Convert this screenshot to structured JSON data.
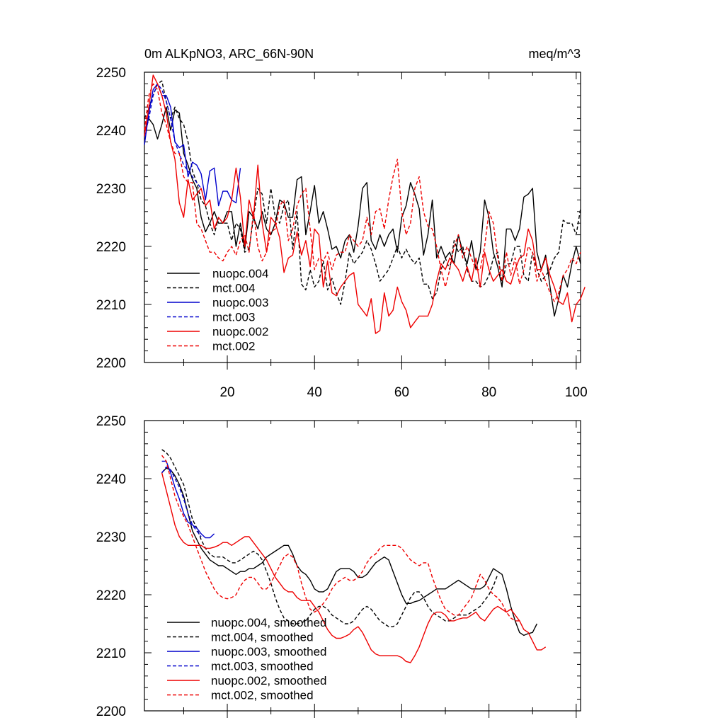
{
  "chart_data": [
    {
      "type": "line",
      "title_left": "0m ALKpNO3, ARC_66N-90N",
      "title_right": "meq/m^3",
      "xlim": [
        1,
        101
      ],
      "ylim": [
        2200,
        2250
      ],
      "xticks": [
        20,
        40,
        60,
        80,
        100
      ],
      "yticks": [
        2200,
        2210,
        2220,
        2230,
        2240,
        2250
      ],
      "show_x_tick_labels": true,
      "legend_position": "bottom-left",
      "series": [
        {
          "name": "nuopc.004",
          "color": "#000000",
          "dash": "solid",
          "start": 1,
          "values": [
            2240,
            2242,
            2241,
            2238.5,
            2241,
            2244,
            2240,
            2243.5,
            2243,
            2236,
            2234,
            2231.5,
            2230,
            2225,
            2222.5,
            2224,
            2226,
            2224,
            2224,
            2226,
            2226,
            2220,
            2224,
            2219.5,
            2226,
            2225,
            2223,
            2226,
            2223,
            2222,
            2224,
            2228,
            2227.5,
            2225,
            2225,
            2231.5,
            2232,
            2222,
            2226,
            2230.5,
            2224,
            2226,
            2223,
            2219.5,
            2220,
            2218,
            2221,
            2222,
            2219,
            2223.5,
            2230,
            2231,
            2221,
            2219.5,
            2222,
            2220,
            2222,
            2223,
            2219,
            2225,
            2227,
            2231,
            2229,
            2226.5,
            2218.5,
            2222,
            2228,
            2218,
            2220,
            2218,
            2219,
            2217,
            2222,
            2219,
            2217,
            2221,
            2216,
            2219,
            2228,
            2225,
            2219,
            2216.5,
            2213,
            2223,
            2223,
            2221,
            2223,
            2228.5,
            2229,
            2230,
            2219,
            2216,
            2218.5,
            2213,
            2208,
            2211,
            2215,
            2213,
            2217,
            2220,
            2217
          ]
        },
        {
          "name": "mct.004",
          "color": "#000000",
          "dash": "dashed",
          "start": 1,
          "values": [
            2242,
            2244,
            2246,
            2248,
            2248.5,
            2245,
            2242,
            2244,
            2242,
            2241,
            2238,
            2233,
            2231,
            2228,
            2227,
            2224,
            2222,
            2225,
            2224,
            2224,
            2221,
            2224,
            2223,
            2219,
            2219.5,
            2225,
            2230,
            2229,
            2224,
            2230,
            2225,
            2224,
            2227,
            2228,
            2219.5,
            2226,
            2213.5,
            2212.5,
            2216,
            2213,
            2214,
            2217.5,
            2212.5,
            2214.5,
            2212,
            2210,
            2214,
            2219,
            2217,
            2218,
            2219,
            2221,
            2219.5,
            2217,
            2214,
            2215,
            2216,
            2218,
            2220,
            2218,
            2219.5,
            2218,
            2217,
            2218,
            2213.5,
            2213.5,
            2211,
            2212,
            2216,
            2218,
            2216,
            2221,
            2219,
            2220,
            2216,
            2214,
            2214,
            2213,
            2213.5,
            2215,
            2218,
            2219,
            2213.5,
            2217,
            2217,
            2220,
            2220,
            2215,
            2214,
            2219,
            2216,
            2214,
            2215,
            2216,
            2218,
            2219,
            2224.5,
            2224,
            2224,
            2222,
            2226.5
          ]
        },
        {
          "name": "nuopc.003",
          "color": "#0000cc",
          "dash": "solid",
          "start": 1,
          "values": [
            2237.5,
            2243,
            2247,
            2248,
            2246,
            2246,
            2244,
            2238,
            2237,
            2237.5,
            2232,
            2234.5,
            2234,
            2232.5,
            2228,
            2233,
            2233.5,
            2227,
            2229.5,
            2229.5,
            2228,
            2227.5,
            2233.5
          ]
        },
        {
          "name": "mct.003",
          "color": "#0000cc",
          "dash": "dashed",
          "start": 1,
          "values": [
            2239,
            2242,
            2246,
            2248,
            2247,
            2245,
            2242,
            2238,
            2236,
            2234,
            2233,
            2232,
            2231,
            2230
          ]
        },
        {
          "name": "nuopc.002",
          "color": "#ee0000",
          "dash": "solid",
          "start": 1,
          "values": [
            2239,
            2244,
            2249.5,
            2248,
            2246,
            2243,
            2238,
            2235,
            2227.5,
            2225,
            2231.5,
            2228,
            2229,
            2230,
            2227,
            2228,
            2223,
            2225,
            2224,
            2225,
            2228,
            2233.5,
            2228.5,
            2220,
            2228,
            2225,
            2234,
            2224,
            2219,
            2225,
            2224,
            2221.5,
            2215.5,
            2218,
            2218.5,
            2222.5,
            2218.5,
            2221,
            2216.5,
            2223,
            2222,
            2213,
            2217.5,
            2212,
            2211.5,
            2213,
            2214,
            2215,
            2215.5,
            2210,
            2209,
            2208,
            2211,
            2205,
            2205.5,
            2212,
            2208,
            2209,
            2213,
            2210.5,
            2209,
            2206,
            2207,
            2208,
            2208,
            2208,
            2210,
            2214,
            2217,
            2216,
            2218,
            2217,
            2216,
            2214,
            2216.5,
            2214,
            2218,
            2213,
            2219,
            2216,
            2214,
            2215,
            2216,
            2214,
            2213.5,
            2216,
            2218,
            2218.5,
            2223,
            2221,
            2216,
            2216,
            2218,
            2215,
            2213,
            2210.5,
            2210,
            2212,
            2207,
            2210,
            2211,
            2213
          ]
        },
        {
          "name": "mct.002",
          "color": "#ee0000",
          "dash": "dashed",
          "start": 1,
          "values": [
            2240,
            2246,
            2248,
            2247,
            2243,
            2241,
            2238,
            2236,
            2236,
            2232,
            2231,
            2231,
            2224,
            2223,
            2221,
            2219,
            2219,
            2218,
            2217.5,
            2219,
            2220,
            2218.5,
            2221,
            2222,
            2219,
            2226,
            2220,
            2217.5,
            2219,
            2222.5,
            2223,
            2227,
            2228,
            2221,
            2223,
            2227,
            2229,
            2230,
            2223,
            2216,
            2218,
            2217.5,
            2219,
            2216,
            2218.5,
            2219,
            2219,
            2222,
            2221,
            2220,
            2221,
            2225,
            2222,
            2226,
            2226.5,
            2223,
            2228,
            2232,
            2235,
            2226,
            2222,
            2224,
            2230,
            2232,
            2226,
            2223.5,
            2223,
            2220,
            2216,
            2213,
            2216,
            2220,
            2222,
            2218,
            2220,
            2218,
            2216,
            2216,
            2220,
            2226,
            2224,
            2218,
            2214,
            2219,
            2215,
            2218,
            2213.5,
            2216,
            2220,
            2219,
            2214,
            2216,
            2214,
            2212,
            2210.5,
            2212,
            2215,
            2216,
            2218,
            2217,
            2219
          ]
        }
      ]
    },
    {
      "type": "line",
      "title_left": "",
      "title_right": "",
      "xlim": [
        1,
        101
      ],
      "ylim": [
        2200,
        2250
      ],
      "xticks": [
        20,
        40,
        60,
        80,
        100
      ],
      "yticks": [
        2200,
        2210,
        2220,
        2230,
        2240,
        2250
      ],
      "show_x_tick_labels": false,
      "legend_position": "bottom-left",
      "series": [
        {
          "name": "nuopc.004, smoothed",
          "color": "#000000",
          "dash": "solid",
          "start": 5,
          "values": [
            2241,
            2241.8,
            2241.5,
            2240.5,
            2239,
            2237,
            2234,
            2231,
            2229.5,
            2228,
            2227,
            2226,
            2225.5,
            2225,
            2225,
            2224.5,
            2224,
            2223.5,
            2224,
            2224,
            2224.5,
            2224.5,
            2225,
            2225.5,
            2226.5,
            2227,
            2227.5,
            2228,
            2228.5,
            2228.5,
            2227,
            2225,
            2224,
            2223.5,
            2222.5,
            2221,
            2220.5,
            2220.5,
            2221,
            2222.5,
            2224,
            2224.5,
            2224.5,
            2224.5,
            2224,
            2223,
            2223,
            2223.5,
            2224.5,
            2225.5,
            2226,
            2226.5,
            2226,
            2224,
            2222,
            2220,
            2218.5,
            2218.5,
            2218.8,
            2219,
            2219.5,
            2220,
            2220.5,
            2221,
            2221,
            2221,
            2221.5,
            2222,
            2222.5,
            2222,
            2221.5,
            2221,
            2221,
            2221,
            2221.5,
            2223,
            2224.5,
            2224,
            2223.5,
            2221,
            2218,
            2215.5,
            2213.5,
            2213,
            2213.3,
            2213.5,
            2215
          ]
        },
        {
          "name": "mct.004, smoothed",
          "color": "#000000",
          "dash": "dashed",
          "start": 5,
          "values": [
            2245,
            2244.5,
            2243.5,
            2242,
            2240.5,
            2239,
            2236,
            2233,
            2231.5,
            2229.5,
            2228,
            2227,
            2226.5,
            2226.5,
            2226.5,
            2226,
            2225.5,
            2225.5,
            2226,
            2226.5,
            2227,
            2227.5,
            2227,
            2226,
            2224,
            2222,
            2219.5,
            2217.5,
            2216,
            2215.5,
            2215,
            2215,
            2215.2,
            2215.5,
            2216.5,
            2217.5,
            2218,
            2218,
            2217.5,
            2216.5,
            2216,
            2215.5,
            2215,
            2215,
            2215.5,
            2216.5,
            2217.5,
            2218,
            2217.5,
            2216.5,
            2215.5,
            2215,
            2214.5,
            2214.5,
            2215,
            2216.5,
            2218,
            2219.5,
            2220.5,
            2220.5,
            2219.5,
            2218,
            2217,
            2216.5,
            2216,
            2215.5,
            2215.5,
            2216,
            2216.5,
            2216.5,
            2216.5,
            2217,
            2217.5,
            2218,
            2219,
            2220,
            2221.5,
            2223.5
          ]
        },
        {
          "name": "nuopc.003, smoothed",
          "color": "#0000cc",
          "dash": "solid",
          "start": 5,
          "values": [
            2243,
            2243,
            2241,
            2238.5,
            2236.5,
            2234,
            2232.5,
            2232,
            2231.5,
            2230.5,
            2229.8,
            2229.8,
            2230.5
          ]
        },
        {
          "name": "mct.003, smoothed",
          "color": "#0000cc",
          "dash": "dashed",
          "start": 5,
          "values": [
            2241,
            2242,
            2241.5,
            2240,
            2238.5,
            2236.5,
            2234,
            2232,
            2231,
            2230
          ]
        },
        {
          "name": "nuopc.002, smoothed",
          "color": "#ee0000",
          "dash": "solid",
          "start": 5,
          "values": [
            2241,
            2238,
            2235,
            2232,
            2230,
            2229,
            2228.5,
            2228.5,
            2228.5,
            2228.5,
            2228,
            2228,
            2228.2,
            2228.5,
            2229,
            2229,
            2228.5,
            2229,
            2229.5,
            2230,
            2230,
            2229,
            2228,
            2227,
            2226,
            2224.5,
            2223,
            2222,
            2221,
            2220.5,
            2220.5,
            2219.5,
            2219,
            2219,
            2219,
            2218,
            2217,
            2215.5,
            2214,
            2213,
            2212.5,
            2212.5,
            2212.8,
            2213.2,
            2214,
            2214.5,
            2213.5,
            2212,
            2210.5,
            2209.8,
            2209.5,
            2209.5,
            2209.5,
            2209.5,
            2209.5,
            2209.2,
            2208.5,
            2208.3,
            2209.5,
            2211,
            2213,
            2215,
            2216.5,
            2217,
            2217,
            2216.5,
            2215.5,
            2215.5,
            2215.8,
            2216,
            2216,
            2216.5,
            2217,
            2216,
            2215.5,
            2216.5,
            2217.5,
            2218,
            2217.5,
            2217,
            2217.5,
            2216.5,
            2215.5,
            2214,
            2213.5,
            2212,
            2210.5,
            2210.5,
            2211
          ]
        },
        {
          "name": "mct.002, smoothed",
          "color": "#ee0000",
          "dash": "dashed",
          "start": 5,
          "values": [
            2244,
            2243,
            2240,
            2237,
            2235,
            2233.5,
            2232,
            2230,
            2228,
            2226,
            2224,
            2222.5,
            2221,
            2220,
            2219.5,
            2219.3,
            2219.5,
            2220,
            2221.5,
            2222.5,
            2223,
            2223,
            2222,
            2221,
            2221,
            2222,
            2223.5,
            2225,
            2226.5,
            2227,
            2226.5,
            2225,
            2222,
            2219.5,
            2217.5,
            2217,
            2217.5,
            2218.5,
            2219.5,
            2221,
            2222,
            2222.5,
            2223,
            2222.5,
            2222.5,
            2223,
            2224,
            2225.5,
            2226.5,
            2227,
            2228,
            2228.5,
            2228.5,
            2228.5,
            2228.5,
            2228,
            2227,
            2226,
            2225.5,
            2225,
            2225.5,
            2225.5,
            2223,
            2221,
            2219,
            2217.5,
            2217,
            2216.5,
            2216.5,
            2217.5,
            2218.5,
            2219.5,
            2221.5,
            2223.5,
            2222.5,
            2221,
            2220,
            2219.5,
            2218.5,
            2217,
            2216,
            2215.5,
            2215.5
          ]
        }
      ]
    }
  ]
}
